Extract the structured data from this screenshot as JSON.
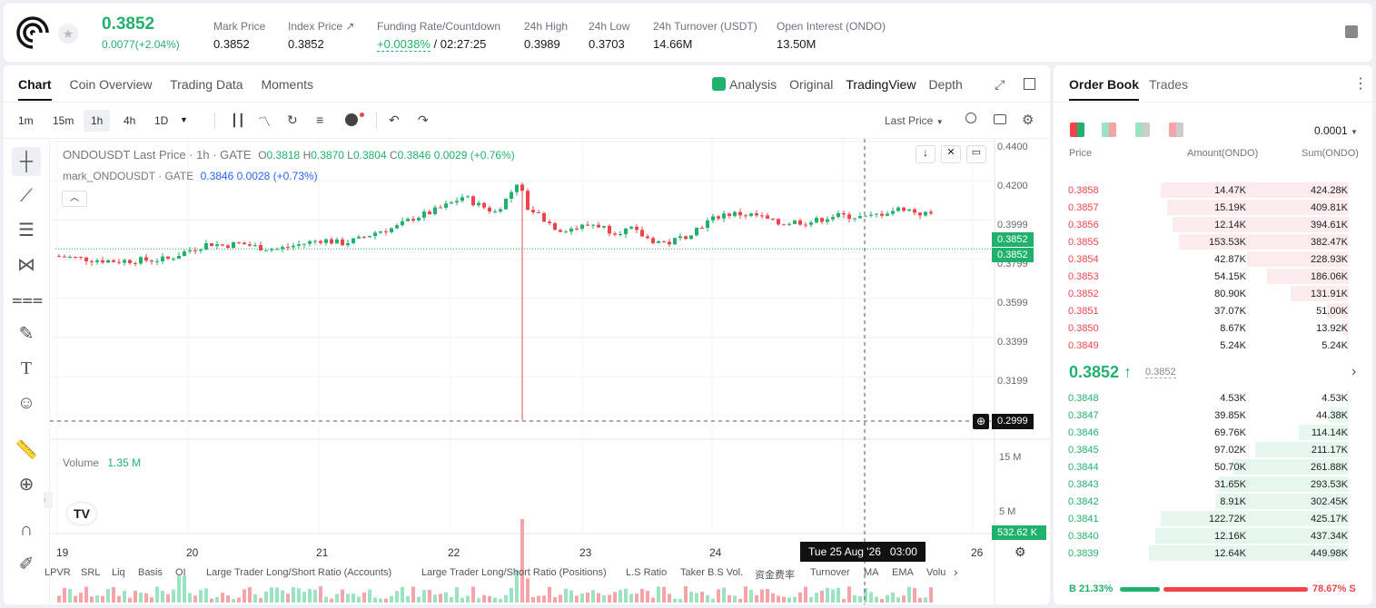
{
  "header": {
    "price": "0.3852",
    "change": "0.0077(+2.04%)",
    "stats": [
      {
        "label": "Mark Price",
        "value": "0.3852"
      },
      {
        "label": "Index Price ↗",
        "value": "0.3852"
      },
      {
        "label": "Funding Rate/Countdown",
        "value_green": "+0.0038%",
        "value": "/ 02:27:25"
      },
      {
        "label": "24h High",
        "value": "0.3989"
      },
      {
        "label": "24h Low",
        "value": "0.3703"
      },
      {
        "label": "24h Turnover (USDT)",
        "value": "14.66M"
      },
      {
        "label": "Open Interest (ONDO)",
        "value": "13.50M"
      }
    ]
  },
  "chart_tabs": [
    "Chart",
    "Coin Overview",
    "Trading Data",
    "Moments"
  ],
  "view_tabs": [
    "Analysis",
    "Original",
    "TradingView",
    "Depth"
  ],
  "timeframes": [
    "1m",
    "15m",
    "1h",
    "4h",
    "1D"
  ],
  "price_type": "Last Price",
  "legend": {
    "symbol": "ONDOUSDT Last Price · 1h · GATE",
    "ohlc": {
      "o": "0.3818",
      "h": "0.3870",
      "l": "0.3804",
      "c": "0.3846",
      "chg": "0.0029 (+0.76%)"
    },
    "mark": "mark_ONDOUSDT · GATE",
    "mark_vals": "0.3846  0.0028  (+0.73%)",
    "volume_label": "Volume",
    "volume_val": "1.35 M"
  },
  "price_axis": [
    "0.4400",
    "0.4200",
    "0.3999",
    "0.3799",
    "0.3599",
    "0.3399",
    "0.3199"
  ],
  "price_tags": {
    "mark": "0.3852",
    "last": "0.3852",
    "cursor": "0.2999",
    "vol": "532.62 K"
  },
  "vol_axis": [
    "15 M",
    "5 M"
  ],
  "time_axis": [
    "19",
    "20",
    "21",
    "22",
    "23",
    "24",
    "26"
  ],
  "crosshair_time": "Tue 25 Aug '26   03:00",
  "bottom_tabs": [
    "LPVR",
    "SRL",
    "Liq",
    "Basis",
    "OI",
    "Large Trader Long/Short Ratio (Accounts)",
    "Large Trader Long/Short Ratio (Positions)",
    "L.S Ratio",
    "Taker B.S Vol.",
    "资金费率",
    "Turnover",
    "MA",
    "EMA",
    "Volu"
  ],
  "orderbook": {
    "tabs": [
      "Order Book",
      "Trades"
    ],
    "precision": "0.0001",
    "cols": [
      "Price",
      "Amount(ONDO)",
      "Sum(ONDO)"
    ],
    "asks": [
      {
        "p": "0.3858",
        "a": "14.47K",
        "s": "424.28K",
        "depth": 0.94
      },
      {
        "p": "0.3857",
        "a": "15.19K",
        "s": "409.81K",
        "depth": 0.91
      },
      {
        "p": "0.3856",
        "a": "12.14K",
        "s": "394.61K",
        "depth": 0.88
      },
      {
        "p": "0.3855",
        "a": "153.53K",
        "s": "382.47K",
        "depth": 0.85
      },
      {
        "p": "0.3854",
        "a": "42.87K",
        "s": "228.93K",
        "depth": 0.51
      },
      {
        "p": "0.3853",
        "a": "54.15K",
        "s": "186.06K",
        "depth": 0.41
      },
      {
        "p": "0.3852",
        "a": "80.90K",
        "s": "131.91K",
        "depth": 0.29
      },
      {
        "p": "0.3851",
        "a": "37.07K",
        "s": "51.00K",
        "depth": 0.11
      },
      {
        "p": "0.3850",
        "a": "8.67K",
        "s": "13.92K",
        "depth": 0.03
      },
      {
        "p": "0.3849",
        "a": "5.24K",
        "s": "5.24K",
        "depth": 0.01
      }
    ],
    "last_price": "0.3852",
    "mark_price": "0.3852",
    "bids": [
      {
        "p": "0.3848",
        "a": "4.53K",
        "s": "4.53K",
        "depth": 0.01
      },
      {
        "p": "0.3847",
        "a": "39.85K",
        "s": "44.38K",
        "depth": 0.1
      },
      {
        "p": "0.3846",
        "a": "69.76K",
        "s": "114.14K",
        "depth": 0.25
      },
      {
        "p": "0.3845",
        "a": "97.02K",
        "s": "211.17K",
        "depth": 0.47
      },
      {
        "p": "0.3844",
        "a": "50.70K",
        "s": "261.88K",
        "depth": 0.58
      },
      {
        "p": "0.3843",
        "a": "31.65K",
        "s": "293.53K",
        "depth": 0.65
      },
      {
        "p": "0.3842",
        "a": "8.91K",
        "s": "302.45K",
        "depth": 0.67
      },
      {
        "p": "0.3841",
        "a": "122.72K",
        "s": "425.17K",
        "depth": 0.94
      },
      {
        "p": "0.3840",
        "a": "12.16K",
        "s": "437.34K",
        "depth": 0.97
      },
      {
        "p": "0.3839",
        "a": "12.64K",
        "s": "449.98K",
        "depth": 1.0
      }
    ],
    "buy_ratio": "21.33%",
    "sell_ratio": "78.67%",
    "buy_label": "B",
    "sell_label": "S",
    "buy_fraction": 0.2133
  },
  "colors": {
    "up": "#20b26c",
    "down": "#ef454a"
  }
}
